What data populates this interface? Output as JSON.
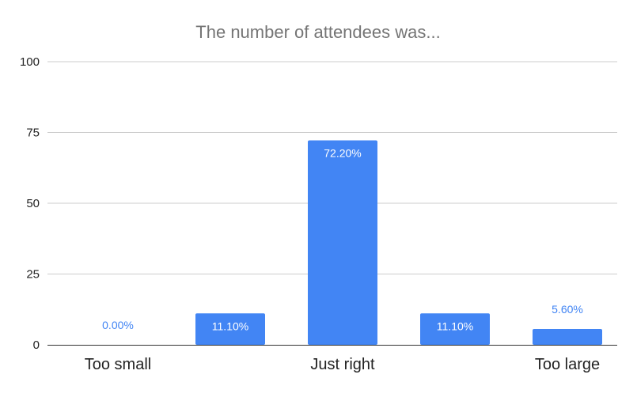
{
  "chart_data": {
    "type": "bar",
    "title": "The number of attendees was...",
    "xlabel": "",
    "ylabel": "",
    "ylim": [
      0,
      100
    ],
    "yticks": [
      0,
      25,
      50,
      75,
      100
    ],
    "categories": [
      "Too small",
      "",
      "Just right",
      "",
      "Too large"
    ],
    "values": [
      0.0,
      11.1,
      72.2,
      11.1,
      5.6
    ],
    "data_labels": [
      "0.00%",
      "11.10%",
      "72.20%",
      "11.10%",
      "5.60%"
    ],
    "grid": true,
    "legend": "none",
    "colors": {
      "bar": "#4285f4",
      "gridline": "#cccccc",
      "axis": "#333333",
      "title": "#757575",
      "label_inside": "#ffffff",
      "label_outside": "#4285f4",
      "tick_label": "#222222"
    }
  }
}
